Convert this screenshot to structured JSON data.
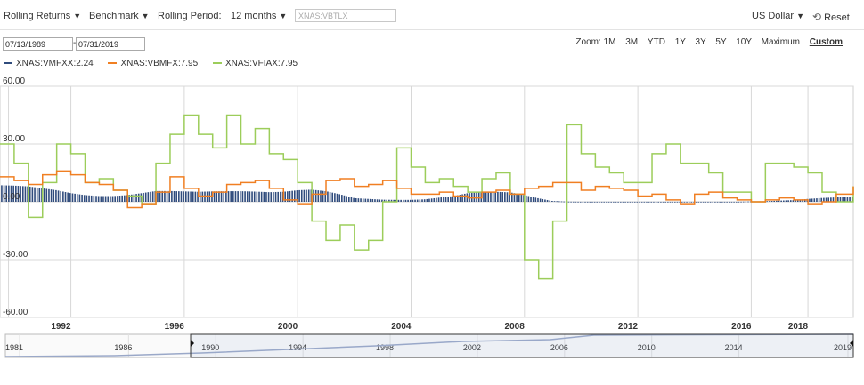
{
  "toolbar": {
    "rolling_returns": "Rolling Returns",
    "benchmark": "Benchmark",
    "rolling_period_label": "Rolling Period:",
    "rolling_period_value": "12 months",
    "ticker_placeholder": "XNAS:VBTLX",
    "currency": "US Dollar",
    "reset": "Reset"
  },
  "date_range": {
    "start": "07/13/1989",
    "separator": "-",
    "end": "07/31/2019"
  },
  "zoom": {
    "label": "Zoom:",
    "options": [
      "1M",
      "3M",
      "YTD",
      "1Y",
      "3Y",
      "5Y",
      "10Y",
      "Maximum",
      "Custom"
    ],
    "active": "Custom"
  },
  "colors": {
    "vmfxx": "#2f4b7c",
    "vbmfx": "#f07f22",
    "vfiax": "#9ccd5a",
    "grid": "#d8d8d8",
    "navigator": "#9aa8c8"
  },
  "chart_data": {
    "type": "line",
    "ylim": [
      -60,
      60
    ],
    "yticks": [
      "60.00",
      "30.00",
      "0.00",
      "-30.00",
      "-60.00"
    ],
    "xlim": [
      1989.5,
      2019.6
    ],
    "xticks": [
      "1992",
      "1996",
      "2000",
      "2004",
      "2008",
      "2012",
      "2016",
      "2018"
    ],
    "x": [
      1989.5,
      1990.0,
      1990.5,
      1991.0,
      1991.5,
      1992.0,
      1992.5,
      1993.0,
      1993.5,
      1994.0,
      1994.5,
      1995.0,
      1995.5,
      1996.0,
      1996.5,
      1997.0,
      1997.5,
      1998.0,
      1998.5,
      1999.0,
      1999.5,
      2000.0,
      2000.5,
      2001.0,
      2001.5,
      2002.0,
      2002.5,
      2003.0,
      2003.5,
      2004.0,
      2004.5,
      2005.0,
      2005.5,
      2006.0,
      2006.5,
      2007.0,
      2007.5,
      2008.0,
      2008.5,
      2009.0,
      2009.5,
      2010.0,
      2010.5,
      2011.0,
      2011.5,
      2012.0,
      2012.5,
      2013.0,
      2013.5,
      2014.0,
      2014.5,
      2015.0,
      2015.5,
      2016.0,
      2016.5,
      2017.0,
      2017.5,
      2018.0,
      2018.5,
      2019.0,
      2019.6
    ],
    "series": [
      {
        "name": "XNAS:VMFXX:2.24",
        "values": [
          8.6,
          8.4,
          8.0,
          7.0,
          6.0,
          4.5,
          3.5,
          3.0,
          3.0,
          3.5,
          4.5,
          5.6,
          5.6,
          5.4,
          5.2,
          5.4,
          5.5,
          5.5,
          5.3,
          5.0,
          5.2,
          6.0,
          6.3,
          5.5,
          3.9,
          1.9,
          1.5,
          1.1,
          1.0,
          1.0,
          1.3,
          2.2,
          3.0,
          4.5,
          5.0,
          5.2,
          4.9,
          3.5,
          1.8,
          0.4,
          0.1,
          0.05,
          0.05,
          0.05,
          0.05,
          0.05,
          0.05,
          0.05,
          0.05,
          0.05,
          0.05,
          0.05,
          0.05,
          0.2,
          0.3,
          0.6,
          0.9,
          1.5,
          2.0,
          2.3,
          2.4
        ]
      },
      {
        "name": "XNAS:VBMFX:7.95",
        "values": [
          13,
          11,
          9,
          14,
          16,
          14,
          10,
          9,
          6,
          -3,
          -1,
          5,
          13,
          7,
          3,
          5,
          9,
          10,
          11,
          7,
          1,
          -1,
          4,
          11,
          12,
          8,
          9,
          11,
          7,
          4,
          4,
          5,
          3,
          2,
          5,
          6,
          4,
          7,
          8,
          10,
          10,
          6,
          8,
          7,
          6,
          3,
          4,
          1,
          -1,
          4,
          5,
          2,
          1,
          0,
          1,
          2,
          1,
          -1,
          0,
          4,
          8
        ]
      },
      {
        "name": "XNAS:VFIAX:7.95",
        "values": [
          30,
          20,
          -8,
          10,
          30,
          25,
          10,
          12,
          6,
          3,
          -1,
          20,
          35,
          45,
          35,
          28,
          45,
          30,
          38,
          25,
          22,
          10,
          -10,
          -20,
          -12,
          -25,
          -20,
          0,
          28,
          18,
          10,
          12,
          8,
          5,
          12,
          15,
          4,
          -30,
          -40,
          -10,
          40,
          25,
          18,
          15,
          10,
          10,
          25,
          30,
          20,
          20,
          15,
          5,
          5,
          0,
          20,
          20,
          18,
          15,
          5,
          0,
          8
        ]
      }
    ],
    "navigator_xticks": [
      "1981",
      "1986",
      "1990",
      "1994",
      "1998",
      "2002",
      "2006",
      "2010",
      "2014",
      "2019"
    ]
  }
}
